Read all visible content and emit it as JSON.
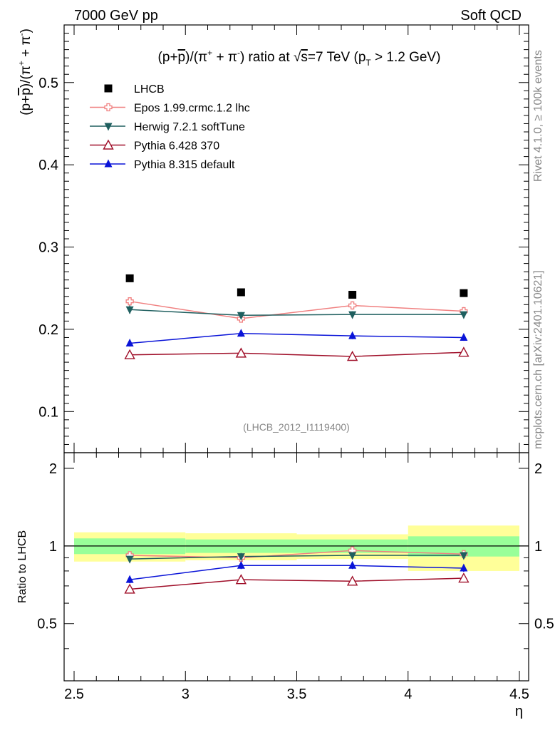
{
  "header": {
    "left": "7000 GeV pp",
    "right": "Soft QCD"
  },
  "side_labels": {
    "rivet": "Rivet 4.1.0, ≥ 100k events",
    "mcplots": "mcplots.cern.ch [arXiv:2401.10621]"
  },
  "chart_data": {
    "type": "scatter",
    "title": "(p+p̅)/(π⁺ + π⁻) ratio at √s=7 TeV (p_T > 1.2 GeV)",
    "title_parts": {
      "a": "(p+",
      "pbar": "p",
      "b": ")/(π",
      "sup_plus": "+",
      "c": " + π",
      "sup_minus": "-",
      "d": ") ratio at ",
      "sqrt": "√",
      "s": "s",
      "e": "=7 TeV (p",
      "sub_t": "T",
      "f": " > 1.2 GeV)"
    },
    "ylabel_parts": {
      "a": "(p+",
      "pbar": "p",
      "b": ")/(π",
      "sup_plus": "+",
      "c": " + π",
      "sup_minus": "-",
      "d": ")"
    },
    "xlabel": "η",
    "ratio_ylabel": "Ratio to LHCB",
    "watermark": "(LHCB_2012_I1119400)",
    "xlim": [
      2.5,
      4.5
    ],
    "ylim": [
      0.05,
      0.57
    ],
    "ratio_ylim": [
      0.3,
      2.3
    ],
    "x_ticks": [
      2.5,
      3,
      3.5,
      4,
      4.5
    ],
    "x_tick_labels": [
      "2.5",
      "3",
      "3.5",
      "4",
      "4.5"
    ],
    "y_ticks": [
      0.1,
      0.2,
      0.3,
      0.4,
      0.5
    ],
    "y_tick_labels": [
      "0.1",
      "0.2",
      "0.3",
      "0.4",
      "0.5"
    ],
    "ratio_ticks": [
      0.5,
      1,
      2
    ],
    "ratio_tick_labels": [
      "0.5",
      "1",
      "2"
    ],
    "x": [
      2.75,
      3.25,
      3.75,
      4.25
    ],
    "bins": [
      [
        2.5,
        3.0
      ],
      [
        3.0,
        3.5
      ],
      [
        3.5,
        4.0
      ],
      [
        4.0,
        4.5
      ]
    ],
    "data": {
      "name": "LHCB",
      "values": [
        0.262,
        0.245,
        0.242,
        0.244
      ]
    },
    "ratio_bands": {
      "stat": [
        0.07,
        0.06,
        0.06,
        0.09
      ],
      "total": [
        0.13,
        0.12,
        0.11,
        0.2
      ]
    },
    "series": [
      {
        "name": "Epos 1.99.crmc.1.2 lhc",
        "color": "#f08080",
        "marker": "cross-open",
        "values": [
          0.234,
          0.213,
          0.229,
          0.222
        ],
        "errors": [
          0.004,
          0.004,
          0.005,
          0.005
        ]
      },
      {
        "name": "Herwig 7.2.1 softTune",
        "color": "#1f5f5f",
        "marker": "triangle-down",
        "values": [
          0.224,
          0.217,
          0.218,
          0.218
        ],
        "errors": [
          0.005,
          0.004,
          0.004,
          0.004
        ]
      },
      {
        "name": "Pythia 6.428 370",
        "color": "#a0102a",
        "marker": "triangle-open",
        "values": [
          0.169,
          0.171,
          0.167,
          0.172
        ],
        "errors": [
          0.003,
          0.003,
          0.003,
          0.003
        ]
      },
      {
        "name": "Pythia 8.315 default",
        "color": "#0a14d8",
        "marker": "triangle-up",
        "values": [
          0.183,
          0.195,
          0.192,
          0.19
        ],
        "errors": [
          0.004,
          0.004,
          0.004,
          0.004
        ]
      }
    ],
    "ratio_series": [
      {
        "name": "Epos 1.99.crmc.1.2 lhc",
        "values": [
          0.92,
          0.9,
          0.96,
          0.93
        ]
      },
      {
        "name": "Herwig 7.2.1 softTune",
        "values": [
          0.89,
          0.91,
          0.92,
          0.92
        ]
      },
      {
        "name": "Pythia 6.428 370",
        "values": [
          0.68,
          0.74,
          0.73,
          0.75
        ]
      },
      {
        "name": "Pythia 8.315 default",
        "values": [
          0.74,
          0.84,
          0.84,
          0.82
        ]
      }
    ]
  }
}
